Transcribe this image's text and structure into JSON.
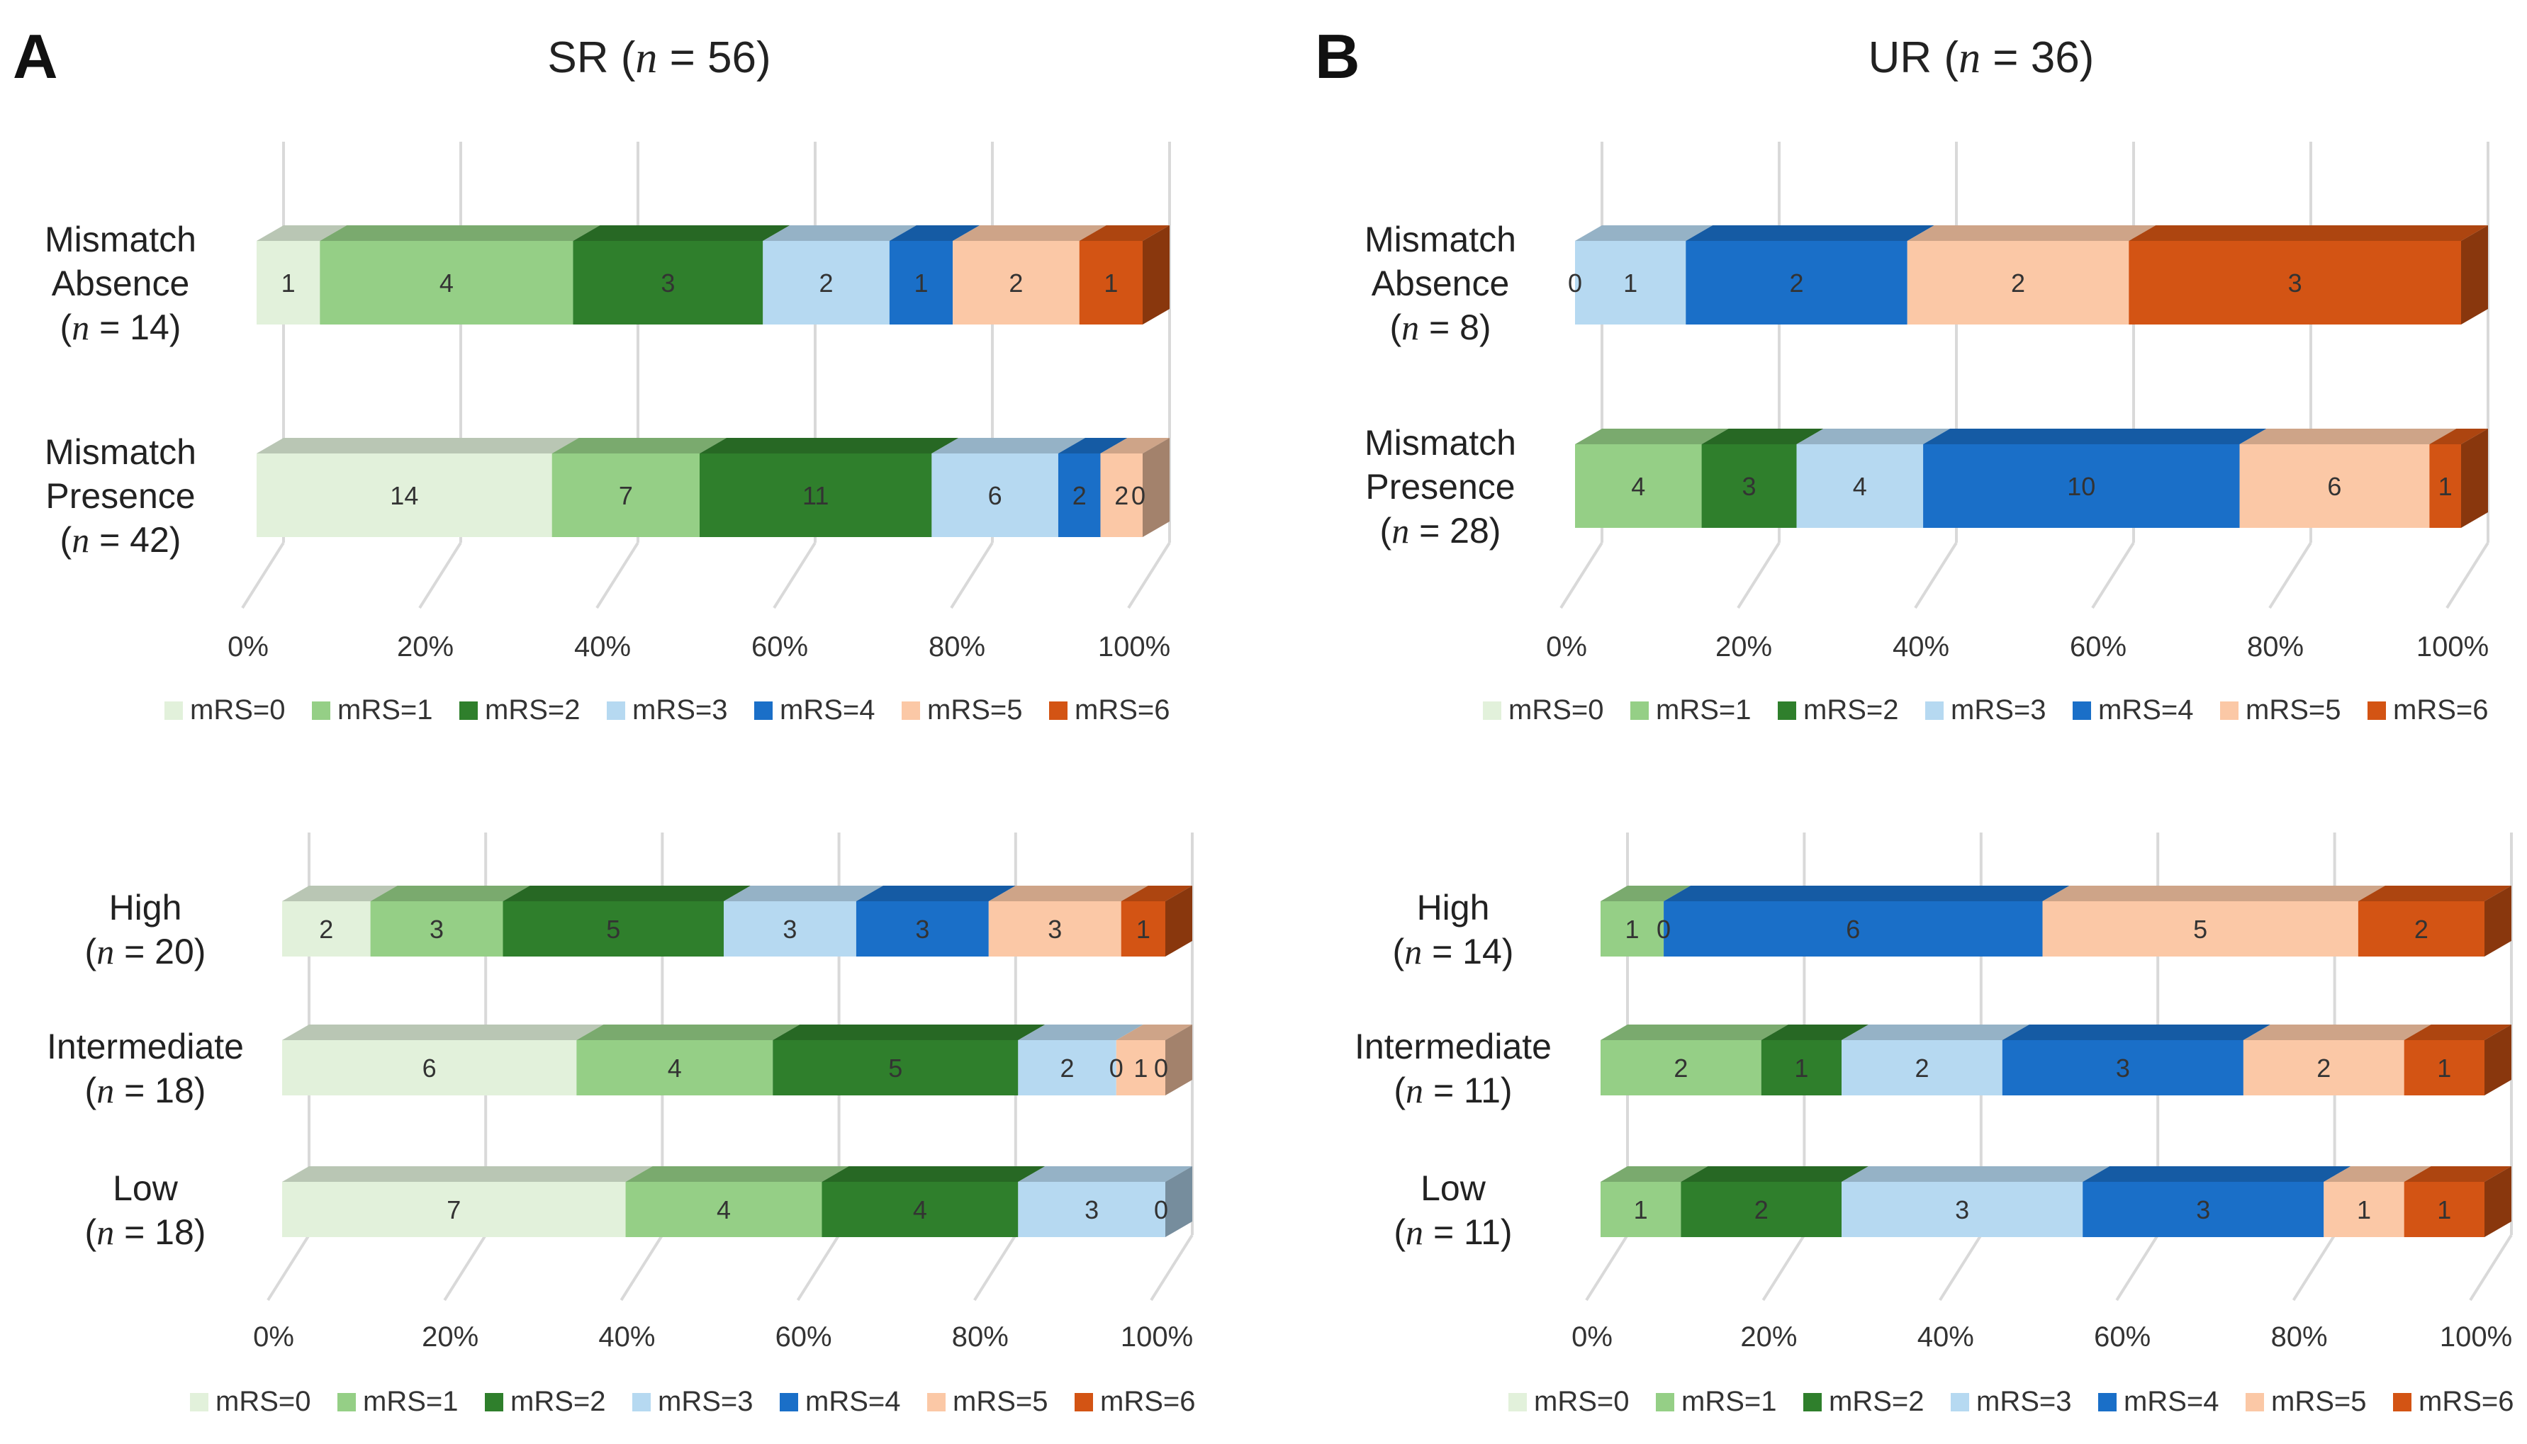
{
  "colors": {
    "mRS=0": "#e2f1db",
    "mRS=1": "#95cf86",
    "mRS=2": "#2f7f2c",
    "mRS=3": "#b6d9f1",
    "mRS=4": "#1a6fc8",
    "mRS=5": "#fbc8a6",
    "mRS=6": "#d35414"
  },
  "legend_items": [
    "mRS=0",
    "mRS=1",
    "mRS=2",
    "mRS=3",
    "mRS=4",
    "mRS=5",
    "mRS=6"
  ],
  "chart_data": [
    {
      "id": "A-top",
      "panel_letter": "A",
      "title": "SR (n = 56)",
      "type": "stacked-bar-100",
      "xlim": [
        0,
        100
      ],
      "ticks": [
        "0%",
        "20%",
        "40%",
        "60%",
        "80%",
        "100%"
      ],
      "categories": [
        {
          "lines": [
            "Mismatch",
            "Absence",
            "(n = 14)"
          ],
          "values": [
            1,
            4,
            3,
            2,
            1,
            2,
            1
          ],
          "labels": [
            "1",
            "4",
            "3",
            "2",
            "1",
            "2",
            "1"
          ]
        },
        {
          "lines": [
            "Mismatch",
            "Presence",
            "(n = 42)"
          ],
          "values": [
            14,
            7,
            11,
            6,
            2,
            2,
            0
          ],
          "labels": [
            "14",
            "7",
            "11",
            "6",
            "2",
            "2",
            "0"
          ]
        }
      ]
    },
    {
      "id": "B-top",
      "panel_letter": "B",
      "title": "UR (n = 36)",
      "type": "stacked-bar-100",
      "xlim": [
        0,
        100
      ],
      "ticks": [
        "0%",
        "20%",
        "40%",
        "60%",
        "80%",
        "100%"
      ],
      "categories": [
        {
          "lines": [
            "Mismatch",
            "Absence",
            "(n = 8)"
          ],
          "values": [
            0,
            0,
            0,
            1,
            2,
            2,
            3
          ],
          "labels": [
            "",
            "",
            "0",
            "1",
            "2",
            "2",
            "3"
          ]
        },
        {
          "lines": [
            "Mismatch",
            "Presence",
            "(n = 28)"
          ],
          "values": [
            0,
            4,
            3,
            4,
            10,
            6,
            1
          ],
          "labels": [
            "",
            "4",
            "3",
            "4",
            "10",
            "6",
            "1"
          ]
        }
      ]
    },
    {
      "id": "A-bottom",
      "panel_letter": "",
      "title": "",
      "type": "stacked-bar-100",
      "xlim": [
        0,
        100
      ],
      "ticks": [
        "0%",
        "20%",
        "40%",
        "60%",
        "80%",
        "100%"
      ],
      "categories": [
        {
          "lines": [
            "High",
            "(n = 20)"
          ],
          "values": [
            2,
            3,
            5,
            3,
            3,
            3,
            1
          ],
          "labels": [
            "2",
            "3",
            "5",
            "3",
            "3",
            "3",
            "1"
          ]
        },
        {
          "lines": [
            "Intermediate",
            "(n = 18)"
          ],
          "values": [
            6,
            4,
            5,
            2,
            0,
            1,
            0
          ],
          "labels": [
            "6",
            "4",
            "5",
            "2",
            "0",
            "1",
            "0"
          ]
        },
        {
          "lines": [
            "Low",
            "(n = 18)"
          ],
          "values": [
            7,
            4,
            4,
            3,
            0,
            0,
            0
          ],
          "labels": [
            "7",
            "4",
            "4",
            "3",
            "0",
            "",
            ""
          ]
        }
      ]
    },
    {
      "id": "B-bottom",
      "panel_letter": "",
      "title": "",
      "type": "stacked-bar-100",
      "xlim": [
        0,
        100
      ],
      "ticks": [
        "0%",
        "20%",
        "40%",
        "60%",
        "80%",
        "100%"
      ],
      "categories": [
        {
          "lines": [
            "High",
            "(n = 14)"
          ],
          "values": [
            0,
            1,
            0,
            0,
            6,
            5,
            2
          ],
          "labels": [
            "",
            "1",
            "0",
            "",
            "6",
            "5",
            "2"
          ]
        },
        {
          "lines": [
            "Intermediate",
            "(n = 11)"
          ],
          "values": [
            0,
            2,
            1,
            2,
            3,
            2,
            1
          ],
          "labels": [
            "",
            "2",
            "1",
            "2",
            "3",
            "2",
            "1"
          ]
        },
        {
          "lines": [
            "Low",
            "(n = 11)"
          ],
          "values": [
            0,
            1,
            2,
            3,
            3,
            1,
            1
          ],
          "labels": [
            "",
            "1",
            "2",
            "3",
            "3",
            "1",
            "1"
          ]
        }
      ]
    }
  ]
}
